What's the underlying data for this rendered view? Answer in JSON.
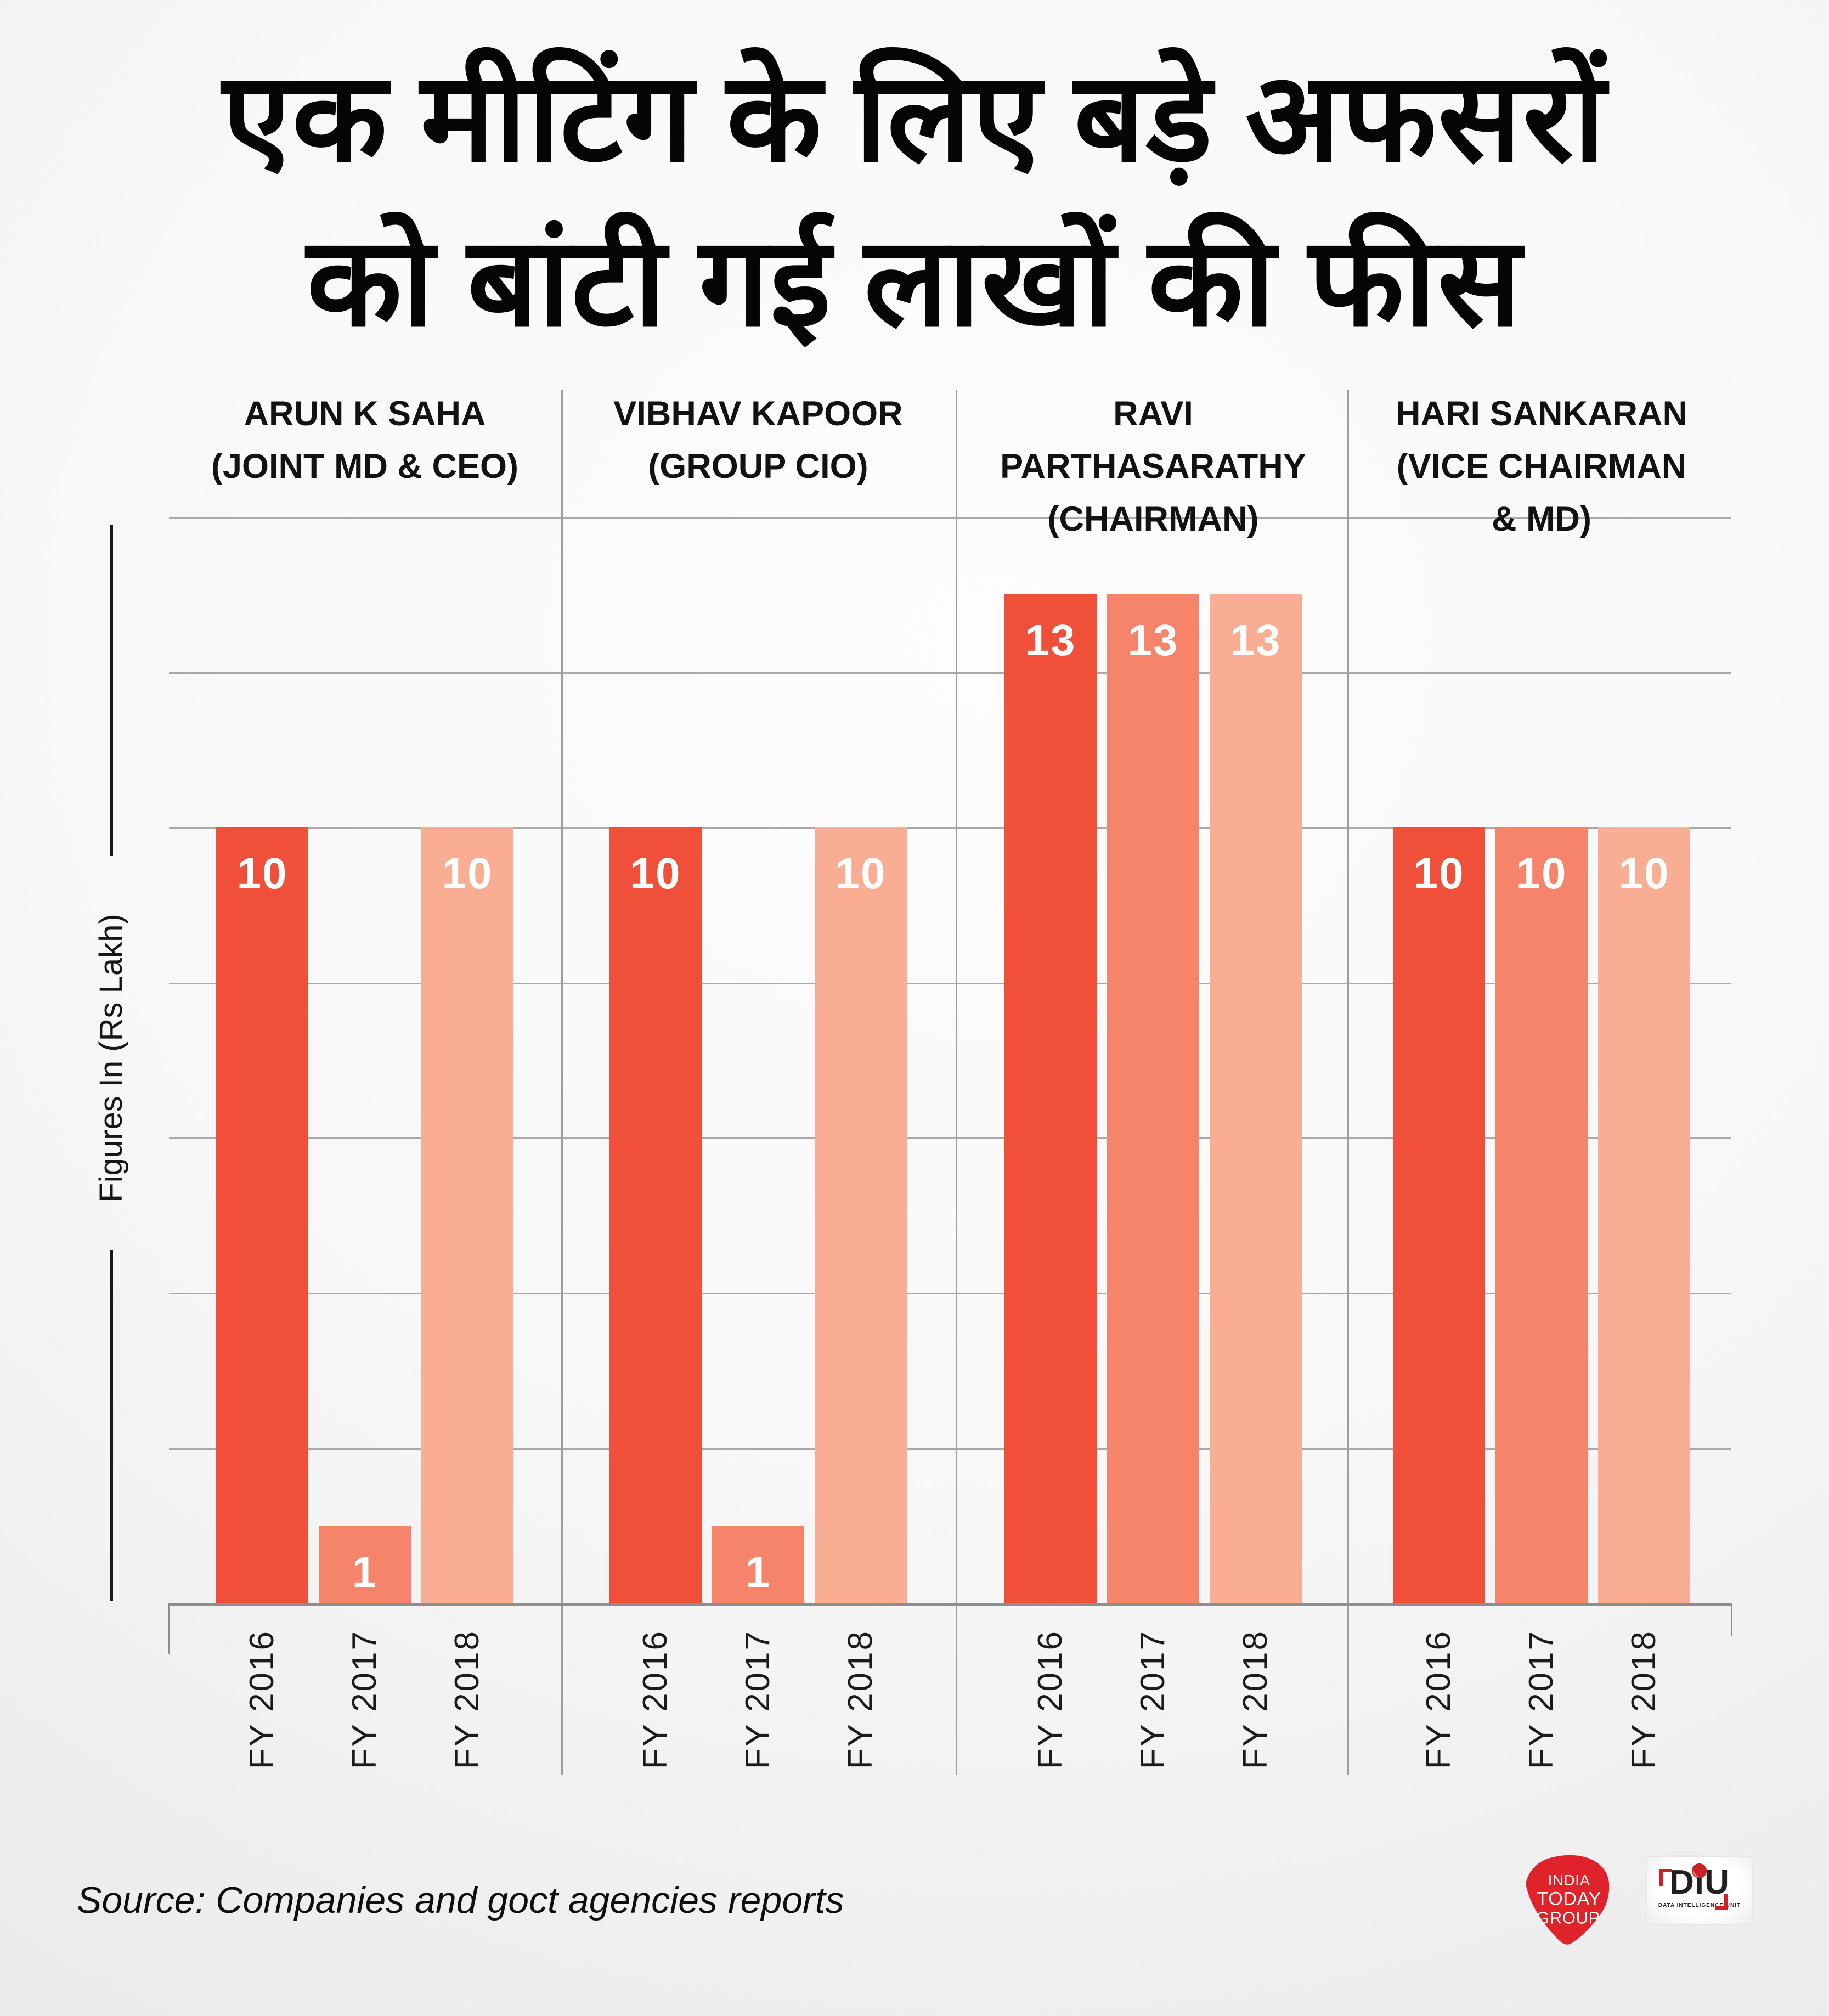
{
  "page": {
    "title_lines": [
      "एक मीटिंग के लिए बड़े अफसरों",
      "को बांटी गई लाखों की फीस"
    ],
    "y_axis_label": "Figures In (Rs Lakh)",
    "source_note": "Source: Companies and goct agencies reports"
  },
  "colors": {
    "series": [
      "#F0503A",
      "#F5846B",
      "#F9AE93"
    ],
    "gridline": "#A9A9A9",
    "axis": "#8E8E8E",
    "divider": "#9D9D9D",
    "value_label": "#FFFFFF",
    "india_today_red": "#E0232A",
    "diu_red": "#CE2127",
    "text_black": "#111111"
  },
  "chart_data": {
    "type": "bar",
    "title": "एक मीटिंग के लिए बड़े अफसरों को बांटी गई लाखों की फीस",
    "ylabel": "Figures In (Rs Lakh)",
    "ylim": [
      0,
      14
    ],
    "grid": true,
    "gridline_values": [
      2,
      4,
      6,
      8,
      10,
      12,
      14
    ],
    "categories": [
      "FY 2016",
      "FY 2017",
      "FY 2018"
    ],
    "series_colors": [
      "#F0503A",
      "#F5846B",
      "#F9AE93"
    ],
    "groups": [
      {
        "person": "ARUN K SAHA",
        "role": "JOINT MD & CEO",
        "header_lines": [
          "ARUN K  SAHA",
          "(JOINT MD & CEO)"
        ],
        "values": [
          10,
          1,
          10
        ]
      },
      {
        "person": "VIBHAV KAPOOR",
        "role": "GROUP CIO",
        "header_lines": [
          "VIBHAV KAPOOR",
          "(GROUP CIO)"
        ],
        "values": [
          10,
          1,
          10
        ]
      },
      {
        "person": "RAVI PARTHASARATHY",
        "role": "CHAIRMAN",
        "header_lines": [
          "RAVI",
          "PARTHASARATHY",
          "(CHAIRMAN)"
        ],
        "values": [
          13,
          13,
          13
        ]
      },
      {
        "person": "HARI SANKARAN",
        "role": "VICE CHAIRMAN & MD",
        "header_lines": [
          "HARI SANKARAN",
          "(VICE CHAIRMAN",
          "& MD)"
        ],
        "values": [
          10,
          10,
          10
        ]
      }
    ]
  },
  "logos": {
    "india_today_group": {
      "lines": [
        "INDIA",
        "TODAY",
        "GROUP"
      ]
    },
    "diu": {
      "wordmark_parts": [
        "D",
        "ı",
        "U"
      ],
      "subtitle": "DATA INTELLIGENCE UNIT"
    }
  }
}
